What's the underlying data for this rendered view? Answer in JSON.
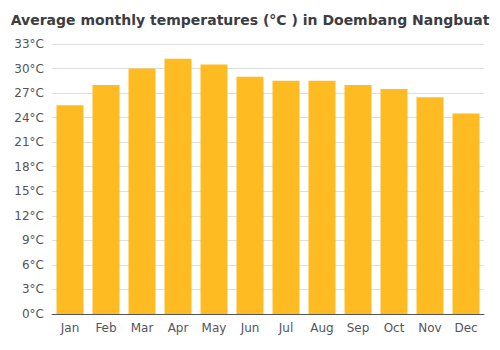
{
  "chart_data": {
    "type": "bar",
    "title": "Average monthly temperatures (°C ) in Doembang Nangbuat",
    "categories": [
      "Jan",
      "Feb",
      "Mar",
      "Apr",
      "May",
      "Jun",
      "Jul",
      "Aug",
      "Sep",
      "Oct",
      "Nov",
      "Dec"
    ],
    "values": [
      25.5,
      28.0,
      30.0,
      31.2,
      30.5,
      29.0,
      28.5,
      28.5,
      28.0,
      27.5,
      26.5,
      24.5
    ],
    "color": "#FFBB22",
    "ylim": [
      0,
      33
    ],
    "yticks": [
      {
        "value": 0,
        "label": "0°C"
      },
      {
        "value": 3,
        "label": "3°C"
      },
      {
        "value": 6,
        "label": "6°C"
      },
      {
        "value": 9,
        "label": "9°C"
      },
      {
        "value": 12,
        "label": "12°C"
      },
      {
        "value": 15,
        "label": "15°C"
      },
      {
        "value": 18,
        "label": "18°C"
      },
      {
        "value": 21,
        "label": "21°C"
      },
      {
        "value": 24,
        "label": "24°C"
      },
      {
        "value": 27,
        "label": "27°C"
      },
      {
        "value": 30,
        "label": "30°C"
      },
      {
        "value": 33,
        "label": "33°C"
      }
    ],
    "grid": true
  }
}
